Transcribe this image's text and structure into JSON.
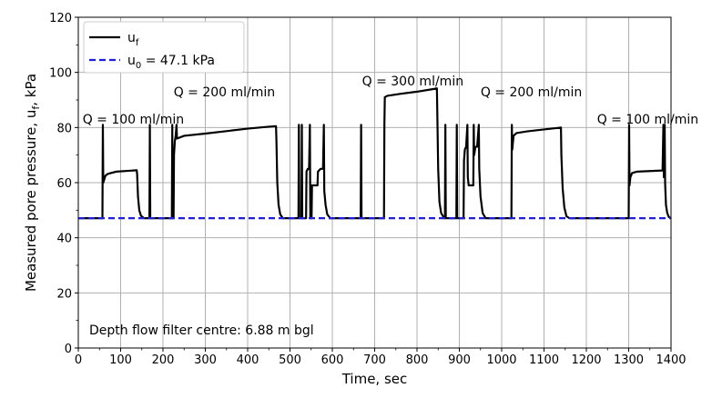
{
  "chart_data": {
    "type": "line",
    "xlabel": "Time, sec",
    "ylabel": "Measured pore pressure, u",
    "ylabel_sub": "f",
    "ylabel_tail": ", kPa",
    "xlim": [
      0,
      1400
    ],
    "ylim": [
      0,
      120
    ],
    "x_ticks": [
      0,
      100,
      200,
      300,
      400,
      500,
      600,
      700,
      800,
      900,
      1000,
      1100,
      1200,
      1300,
      1400
    ],
    "y_ticks": [
      0,
      20,
      40,
      60,
      80,
      100,
      120
    ],
    "grid": true,
    "legend": {
      "position": "top-left",
      "entries": [
        {
          "label": "u",
          "sub": "f",
          "tail": "",
          "color": "#000000",
          "style": "solid"
        },
        {
          "label": "u",
          "sub": "0",
          "tail": " = 47.1 kPa",
          "color": "#1f1fd8",
          "style": "dashed"
        }
      ]
    },
    "annotations": [
      {
        "text": "Q = 100 ml/min",
        "x": 130,
        "y": 83
      },
      {
        "text": "Q = 200 ml/min",
        "x": 345,
        "y": 93
      },
      {
        "text": "Q = 300 ml/min",
        "x": 790,
        "y": 97
      },
      {
        "text": "Q = 200 ml/min",
        "x": 1070,
        "y": 93
      },
      {
        "text": "Q = 100 ml/min",
        "x": 1345,
        "y": 83
      }
    ],
    "note": "Depth flow filter centre: 6.88 m bgl",
    "note_position": "bottom-left",
    "series": [
      {
        "name": "u_f",
        "color": "#000000",
        "points": [
          [
            0,
            47.1
          ],
          [
            57,
            47.1
          ],
          [
            58,
            81
          ],
          [
            59,
            60
          ],
          [
            61,
            61
          ],
          [
            64,
            62.5
          ],
          [
            70,
            63.2
          ],
          [
            90,
            64
          ],
          [
            120,
            64.3
          ],
          [
            138,
            64.5
          ],
          [
            139,
            63
          ],
          [
            141,
            55
          ],
          [
            144,
            50
          ],
          [
            148,
            48
          ],
          [
            155,
            47.1
          ],
          [
            168,
            47.1
          ],
          [
            169,
            81
          ],
          [
            170,
            47.1
          ],
          [
            221,
            47.1
          ],
          [
            222,
            81
          ],
          [
            223,
            47.1
          ],
          [
            225,
            47.1
          ],
          [
            226,
            70
          ],
          [
            228,
            75
          ],
          [
            230,
            77
          ],
          [
            232,
            81
          ],
          [
            233,
            76
          ],
          [
            250,
            77
          ],
          [
            300,
            77.8
          ],
          [
            350,
            78.7
          ],
          [
            400,
            79.6
          ],
          [
            450,
            80.3
          ],
          [
            467,
            80.5
          ],
          [
            468,
            75
          ],
          [
            470,
            60
          ],
          [
            473,
            52
          ],
          [
            477,
            48.5
          ],
          [
            483,
            47.1
          ],
          [
            520,
            47.1
          ],
          [
            521,
            81
          ],
          [
            522,
            47.1
          ],
          [
            527,
            47.1
          ],
          [
            528,
            81
          ],
          [
            529,
            47.1
          ],
          [
            538,
            47.1
          ],
          [
            539,
            64
          ],
          [
            542,
            65
          ],
          [
            545,
            65
          ],
          [
            547,
            81
          ],
          [
            548,
            47.1
          ],
          [
            551,
            47.1
          ],
          [
            552,
            59
          ],
          [
            560,
            59
          ],
          [
            565,
            59
          ],
          [
            566,
            64
          ],
          [
            572,
            65
          ],
          [
            578,
            65
          ],
          [
            580,
            81
          ],
          [
            581,
            57
          ],
          [
            584,
            52
          ],
          [
            588,
            48.5
          ],
          [
            595,
            47.1
          ],
          [
            667,
            47.1
          ],
          [
            668,
            81
          ],
          [
            669,
            47.1
          ],
          [
            722,
            47.1
          ],
          [
            723,
            81
          ],
          [
            724,
            91
          ],
          [
            730,
            91.5
          ],
          [
            760,
            92.2
          ],
          [
            800,
            93
          ],
          [
            840,
            94
          ],
          [
            847,
            94.2
          ],
          [
            848,
            85
          ],
          [
            850,
            65
          ],
          [
            853,
            53
          ],
          [
            857,
            49
          ],
          [
            864,
            47.1
          ],
          [
            866,
            47.1
          ],
          [
            867,
            81
          ],
          [
            868,
            47.1
          ],
          [
            893,
            47.1
          ],
          [
            894,
            81
          ],
          [
            895,
            47.1
          ],
          [
            910,
            47.1
          ],
          [
            911,
            68
          ],
          [
            913,
            72
          ],
          [
            916,
            73
          ],
          [
            919,
            81
          ],
          [
            920,
            62
          ],
          [
            922,
            59
          ],
          [
            930,
            59
          ],
          [
            933,
            59
          ],
          [
            934,
            81
          ],
          [
            935,
            70
          ],
          [
            938,
            73
          ],
          [
            942,
            73
          ],
          [
            946,
            81
          ],
          [
            947,
            65
          ],
          [
            950,
            55
          ],
          [
            955,
            49
          ],
          [
            962,
            47.1
          ],
          [
            1023,
            47.1
          ],
          [
            1024,
            81
          ],
          [
            1025,
            72
          ],
          [
            1028,
            77
          ],
          [
            1035,
            78
          ],
          [
            1060,
            78.6
          ],
          [
            1100,
            79.3
          ],
          [
            1130,
            79.8
          ],
          [
            1140,
            80
          ],
          [
            1141,
            70
          ],
          [
            1144,
            58
          ],
          [
            1148,
            51
          ],
          [
            1153,
            47.8
          ],
          [
            1160,
            47.1
          ],
          [
            1300,
            47.1
          ],
          [
            1301,
            81
          ],
          [
            1302,
            59
          ],
          [
            1304,
            62
          ],
          [
            1308,
            63.5
          ],
          [
            1320,
            64
          ],
          [
            1350,
            64.2
          ],
          [
            1380,
            64.4
          ],
          [
            1382,
            81
          ],
          [
            1383,
            62
          ],
          [
            1385,
            81
          ],
          [
            1386,
            60
          ],
          [
            1388,
            52
          ],
          [
            1391,
            49
          ],
          [
            1395,
            47.5
          ],
          [
            1400,
            47.1
          ]
        ]
      },
      {
        "name": "u_0",
        "color": "#1f1fd8",
        "style": "dashed",
        "points": [
          [
            0,
            47.1
          ],
          [
            1400,
            47.1
          ]
        ]
      }
    ]
  }
}
